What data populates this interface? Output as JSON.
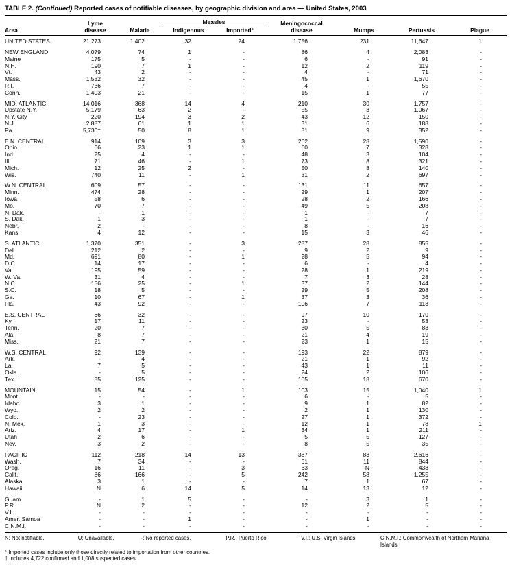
{
  "title": {
    "part1": "TABLE 2. ",
    "part2": "(Continued)",
    "part3": " Reported cases of notifiable diseases, by geographic division and area — United States, 2003"
  },
  "header": {
    "area": "Area",
    "lyme_line1": "Lyme",
    "lyme_line2": "disease",
    "malaria": "Malaria",
    "measles_group": "Measles",
    "indigenous": "Indigenous",
    "imported": "Imported*",
    "mening_line1": "Meningococcal",
    "mening_line2": "disease",
    "mumps": "Mumps",
    "pertussis": "Pertussis",
    "plague": "Plague"
  },
  "table": {
    "groups": [
      {
        "rows": [
          [
            "UNITED STATES",
            "21,273",
            "1,402",
            "32",
            "24",
            "1,756",
            "231",
            "11,647",
            "1"
          ]
        ]
      },
      {
        "rows": [
          [
            "NEW ENGLAND",
            "4,079",
            "74",
            "1",
            "-",
            "86",
            "4",
            "2,083",
            "-"
          ],
          [
            "Maine",
            "175",
            "5",
            "-",
            "-",
            "6",
            "-",
            "91",
            "-"
          ],
          [
            "N.H.",
            "190",
            "7",
            "1",
            "-",
            "12",
            "2",
            "119",
            "-"
          ],
          [
            "Vt.",
            "43",
            "2",
            "-",
            "-",
            "4",
            "-",
            "71",
            "-"
          ],
          [
            "Mass.",
            "1,532",
            "32",
            "-",
            "-",
            "45",
            "1",
            "1,670",
            "-"
          ],
          [
            "R.I.",
            "736",
            "7",
            "-",
            "-",
            "4",
            "-",
            "55",
            "-"
          ],
          [
            "Conn.",
            "1,403",
            "21",
            "-",
            "-",
            "15",
            "1",
            "77",
            "-"
          ]
        ]
      },
      {
        "rows": [
          [
            "MID. ATLANTIC",
            "14,016",
            "368",
            "14",
            "4",
            "210",
            "30",
            "1,757",
            "-"
          ],
          [
            "Upstate N.Y.",
            "5,179",
            "63",
            "2",
            "-",
            "55",
            "3",
            "1,067",
            "-"
          ],
          [
            "N.Y. City",
            "220",
            "194",
            "3",
            "2",
            "43",
            "12",
            "150",
            "-"
          ],
          [
            "N.J.",
            "2,887",
            "61",
            "1",
            "1",
            "31",
            "6",
            "188",
            "-"
          ],
          [
            "Pa.",
            "5,730†",
            "50",
            "8",
            "1",
            "81",
            "9",
            "352",
            "-"
          ]
        ]
      },
      {
        "rows": [
          [
            "E.N. CENTRAL",
            "914",
            "109",
            "3",
            "3",
            "262",
            "28",
            "1,590",
            "-"
          ],
          [
            "Ohio",
            "66",
            "23",
            "1",
            "1",
            "60",
            "7",
            "328",
            "-"
          ],
          [
            "Ind.",
            "25",
            "4",
            "-",
            "-",
            "48",
            "3",
            "104",
            "-"
          ],
          [
            "Ill.",
            "71",
            "46",
            "-",
            "1",
            "73",
            "8",
            "321",
            "-"
          ],
          [
            "Mich.",
            "12",
            "25",
            "2",
            "-",
            "50",
            "8",
            "140",
            "-"
          ],
          [
            "Wis.",
            "740",
            "11",
            "-",
            "1",
            "31",
            "2",
            "697",
            "-"
          ]
        ]
      },
      {
        "rows": [
          [
            "W.N. CENTRAL",
            "609",
            "57",
            "-",
            "-",
            "131",
            "11",
            "657",
            "-"
          ],
          [
            "Minn.",
            "474",
            "28",
            "-",
            "-",
            "29",
            "1",
            "207",
            "-"
          ],
          [
            "Iowa",
            "58",
            "6",
            "-",
            "-",
            "28",
            "2",
            "166",
            "-"
          ],
          [
            "Mo.",
            "70",
            "7",
            "-",
            "-",
            "49",
            "5",
            "208",
            "-"
          ],
          [
            "N. Dak.",
            "-",
            "1",
            "-",
            "-",
            "1",
            "-",
            "7",
            "-"
          ],
          [
            "S. Dak.",
            "1",
            "3",
            "-",
            "-",
            "1",
            "-",
            "7",
            "-"
          ],
          [
            "Nebr.",
            "2",
            "-",
            "-",
            "-",
            "8",
            "-",
            "16",
            "-"
          ],
          [
            "Kans.",
            "4",
            "12",
            "-",
            "-",
            "15",
            "3",
            "46",
            "-"
          ]
        ]
      },
      {
        "rows": [
          [
            "S. ATLANTIC",
            "1,370",
            "351",
            "-",
            "3",
            "287",
            "28",
            "855",
            "-"
          ],
          [
            "Del.",
            "212",
            "2",
            "-",
            "-",
            "9",
            "2",
            "9",
            "-"
          ],
          [
            "Md.",
            "691",
            "80",
            "-",
            "1",
            "28",
            "5",
            "94",
            "-"
          ],
          [
            "D.C.",
            "14",
            "17",
            "-",
            "-",
            "6",
            "-",
            "4",
            "-"
          ],
          [
            "Va.",
            "195",
            "59",
            "-",
            "-",
            "28",
            "1",
            "219",
            "-"
          ],
          [
            "W. Va.",
            "31",
            "4",
            "-",
            "-",
            "7",
            "3",
            "28",
            "-"
          ],
          [
            "N.C.",
            "156",
            "25",
            "-",
            "1",
            "37",
            "2",
            "144",
            "-"
          ],
          [
            "S.C.",
            "18",
            "5",
            "-",
            "-",
            "29",
            "5",
            "208",
            "-"
          ],
          [
            "Ga.",
            "10",
            "67",
            "-",
            "1",
            "37",
            "3",
            "36",
            "-"
          ],
          [
            "Fla.",
            "43",
            "92",
            "-",
            "-",
            "106",
            "7",
            "113",
            "-"
          ]
        ]
      },
      {
        "rows": [
          [
            "E.S. CENTRAL",
            "66",
            "32",
            "-",
            "-",
            "97",
            "10",
            "170",
            "-"
          ],
          [
            "Ky.",
            "17",
            "11",
            "-",
            "-",
            "23",
            "-",
            "53",
            "-"
          ],
          [
            "Tenn.",
            "20",
            "7",
            "-",
            "-",
            "30",
            "5",
            "83",
            "-"
          ],
          [
            "Ala.",
            "8",
            "7",
            "-",
            "-",
            "21",
            "4",
            "19",
            "-"
          ],
          [
            "Miss.",
            "21",
            "7",
            "-",
            "-",
            "23",
            "1",
            "15",
            "-"
          ]
        ]
      },
      {
        "rows": [
          [
            "W.S. CENTRAL",
            "92",
            "139",
            "-",
            "-",
            "193",
            "22",
            "879",
            "-"
          ],
          [
            "Ark.",
            "-",
            "4",
            "-",
            "-",
            "21",
            "1",
            "92",
            "-"
          ],
          [
            "La.",
            "7",
            "5",
            "-",
            "-",
            "43",
            "1",
            "11",
            "-"
          ],
          [
            "Okla.",
            "-",
            "5",
            "-",
            "-",
            "24",
            "2",
            "106",
            "-"
          ],
          [
            "Tex.",
            "85",
            "125",
            "-",
            "-",
            "105",
            "18",
            "670",
            "-"
          ]
        ]
      },
      {
        "rows": [
          [
            "MOUNTAIN",
            "15",
            "54",
            "-",
            "1",
            "103",
            "15",
            "1,040",
            "1"
          ],
          [
            "Mont.",
            "-",
            "-",
            "-",
            "-",
            "6",
            "-",
            "5",
            "-"
          ],
          [
            "Idaho",
            "3",
            "1",
            "-",
            "-",
            "9",
            "1",
            "82",
            "-"
          ],
          [
            "Wyo.",
            "2",
            "2",
            "-",
            "-",
            "2",
            "1",
            "130",
            "-"
          ],
          [
            "Colo.",
            "-",
            "23",
            "-",
            "-",
            "27",
            "1",
            "372",
            "-"
          ],
          [
            "N. Mex.",
            "1",
            "3",
            "-",
            "-",
            "12",
            "1",
            "78",
            "1"
          ],
          [
            "Ariz.",
            "4",
            "17",
            "-",
            "1",
            "34",
            "1",
            "211",
            "-"
          ],
          [
            "Utah",
            "2",
            "6",
            "-",
            "-",
            "5",
            "5",
            "127",
            "-"
          ],
          [
            "Nev.",
            "3",
            "2",
            "-",
            "-",
            "8",
            "5",
            "35",
            "-"
          ]
        ]
      },
      {
        "rows": [
          [
            "PACIFIC",
            "112",
            "218",
            "14",
            "13",
            "387",
            "83",
            "2,616",
            "-"
          ],
          [
            "Wash.",
            "7",
            "34",
            "-",
            "-",
            "61",
            "11",
            "844",
            "-"
          ],
          [
            "Oreg.",
            "16",
            "11",
            "-",
            "3",
            "63",
            "N",
            "438",
            "-"
          ],
          [
            "Calif.",
            "86",
            "166",
            "-",
            "5",
            "242",
            "58",
            "1,255",
            "-"
          ],
          [
            "Alaska",
            "3",
            "1",
            "-",
            "-",
            "7",
            "1",
            "67",
            "-"
          ],
          [
            "Hawaii",
            "N",
            "6",
            "14",
            "5",
            "14",
            "13",
            "12",
            "-"
          ]
        ]
      },
      {
        "rows": [
          [
            "Guam",
            "-",
            "1",
            "5",
            "-",
            "-",
            "3",
            "1",
            "-"
          ],
          [
            "P.R.",
            "N",
            "2",
            "-",
            "-",
            "12",
            "2",
            "5",
            "-"
          ],
          [
            "V.I.",
            "-",
            "-",
            "-",
            "-",
            "-",
            "-",
            "-",
            "-"
          ],
          [
            "Amer. Samoa",
            "-",
            "-",
            "1",
            "-",
            "-",
            "1",
            "-",
            "-"
          ],
          [
            "C.N.M.I.",
            "-",
            "-",
            "-",
            "-",
            "-",
            "-",
            "-",
            "-"
          ]
        ]
      }
    ]
  },
  "footnotes": {
    "key_items": [
      "N: Not notifiable.",
      "U: Unavailable.",
      "-: No reported cases.",
      "P.R.: Puerto Rico",
      "V.I.: U.S. Virgin Islands",
      "C.N.M.I.: Commonwealth of Northern Mariana Islands"
    ],
    "asterisk": "* Imported cases include only those directly related to importation from other countries.",
    "dagger": "† Includes 4,722 confirmed and 1,008 suspected cases."
  }
}
